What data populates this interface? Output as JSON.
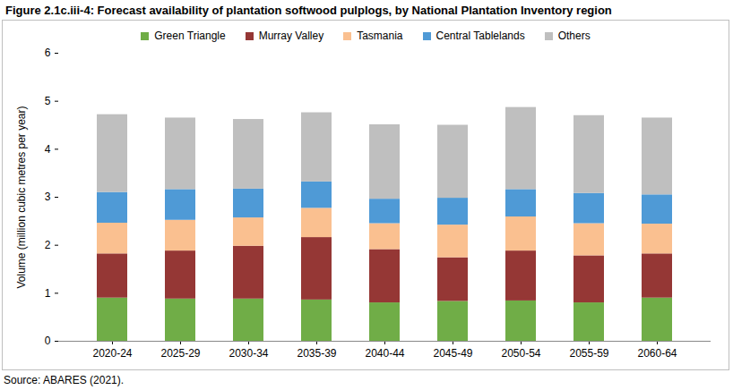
{
  "chart_data": {
    "type": "bar",
    "title": "Figure 2.1c.iii-4: Forecast availability of plantation softwood pulplogs, by National Plantation Inventory region",
    "source": "Source: ABARES (2021).",
    "y_label": "Volume (million cubic metres per year)",
    "categories": [
      "2020-24",
      "2025-29",
      "2030-34",
      "2035-39",
      "2040-44",
      "2045-49",
      "2050-54",
      "2055-59",
      "2060-64"
    ],
    "series": [
      {
        "name": "Green Triangle",
        "color": "#70ad47",
        "values": [
          0.9,
          0.88,
          0.88,
          0.86,
          0.8,
          0.83,
          0.84,
          0.8,
          0.9
        ]
      },
      {
        "name": "Murray Valley",
        "color": "#953735",
        "values": [
          0.92,
          1.0,
          1.1,
          1.3,
          1.11,
          0.91,
          1.04,
          0.98,
          0.92
        ]
      },
      {
        "name": "Tasmania",
        "color": "#fac090",
        "values": [
          0.64,
          0.64,
          0.59,
          0.61,
          0.54,
          0.68,
          0.71,
          0.67,
          0.62
        ]
      },
      {
        "name": "Central Tablelands",
        "color": "#4f9ad6",
        "values": [
          0.64,
          0.64,
          0.6,
          0.55,
          0.51,
          0.56,
          0.57,
          0.63,
          0.61
        ]
      },
      {
        "name": "Others",
        "color": "#bfbfbf",
        "values": [
          1.62,
          1.49,
          1.45,
          1.44,
          1.55,
          1.52,
          1.71,
          1.62,
          1.6
        ]
      }
    ],
    "ylim": [
      0,
      6
    ],
    "yticks": [
      0,
      1,
      2,
      3,
      4,
      5,
      6
    ],
    "stacked": true,
    "legend": "top",
    "grid": false
  }
}
